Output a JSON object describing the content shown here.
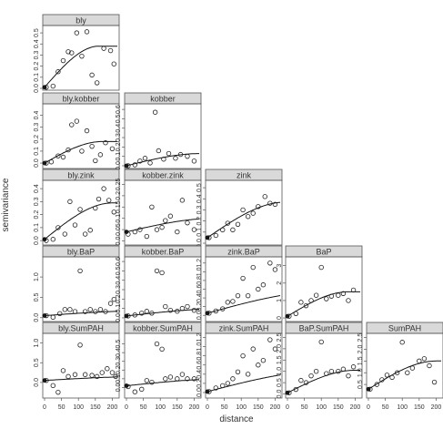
{
  "chart_data": {
    "type": "scatter",
    "layout": "lower-triangular panel grid (5 x 5) with fitted curve per panel",
    "xlabel": "distance",
    "ylabel": "semivariance",
    "xlim": [
      0,
      215
    ],
    "x_ticks": [
      "0",
      "50",
      "100",
      "150",
      "200"
    ],
    "panels": [
      {
        "title": "bly",
        "row": 0,
        "col": 0,
        "ylim": [
          0,
          0.55
        ],
        "y_ticks": [
          [
            "0.0",
            0
          ],
          [
            "0.1",
            0.1
          ],
          [
            "0.2",
            0.2
          ],
          [
            "0.3",
            0.3
          ],
          [
            "0.4",
            0.4
          ],
          [
            "0.5",
            0.5
          ]
        ],
        "x": [
          5,
          25,
          40,
          55,
          70,
          80,
          95,
          110,
          125,
          140,
          155,
          175,
          195,
          205
        ],
        "y": [
          0.01,
          0.02,
          0.15,
          0.25,
          0.33,
          0.32,
          0.5,
          0.29,
          0.51,
          0.12,
          0.05,
          0.36,
          0.34,
          0.22
        ],
        "fit": {
          "a": 0.01,
          "b": 0.37,
          "r": 160
        }
      },
      {
        "title": "bly.kobber",
        "row": 1,
        "col": 0,
        "ylim": [
          -0.03,
          0.48
        ],
        "y_ticks": [
          [
            "0.0",
            0
          ],
          [
            "0.1",
            0.1
          ],
          [
            "0.2",
            0.2
          ],
          [
            "0.3",
            0.3
          ],
          [
            "0.4",
            0.4
          ]
        ],
        "x": [
          5,
          20,
          40,
          55,
          70,
          80,
          95,
          110,
          125,
          140,
          150,
          165,
          180,
          200
        ],
        "y": [
          0.0,
          0.01,
          0.06,
          0.05,
          0.11,
          0.32,
          0.35,
          0.1,
          0.27,
          0.14,
          0.02,
          0.07,
          0.17,
          0.12
        ],
        "fit": {
          "a": 0.0,
          "b": 0.18,
          "r": 170
        }
      },
      {
        "title": "kobber",
        "row": 1,
        "col": 1,
        "ylim": [
          -0.01,
          0.64
        ],
        "y_ticks": [
          [
            "0.0",
            0
          ],
          [
            "0.1",
            0.1
          ],
          [
            "0.2",
            0.2
          ],
          [
            "0.3",
            0.3
          ],
          [
            "0.4",
            0.4
          ],
          [
            "0.5",
            0.5
          ],
          [
            "0.6",
            0.6
          ]
        ],
        "x": [
          5,
          25,
          40,
          55,
          70,
          85,
          95,
          110,
          125,
          145,
          160,
          180,
          200
        ],
        "y": [
          0.0,
          0.01,
          0.05,
          0.08,
          0.03,
          0.57,
          0.16,
          0.07,
          0.13,
          0.08,
          0.12,
          0.1,
          0.05
        ],
        "fit": {
          "a": 0.0,
          "b": 0.13,
          "r": 220
        }
      },
      {
        "title": "bly.zink",
        "row": 2,
        "col": 0,
        "ylim": [
          -0.02,
          0.45
        ],
        "y_ticks": [
          [
            "0.0",
            0
          ],
          [
            "0.1",
            0.1
          ],
          [
            "0.2",
            0.2
          ],
          [
            "0.3",
            0.3
          ],
          [
            "0.4",
            0.4
          ]
        ],
        "x": [
          5,
          25,
          40,
          60,
          75,
          90,
          105,
          120,
          135,
          150,
          160,
          175,
          190,
          205
        ],
        "y": [
          0.0,
          0.01,
          0.1,
          0.05,
          0.3,
          0.12,
          0.24,
          0.05,
          0.08,
          0.25,
          0.32,
          0.4,
          0.31,
          0.22
        ],
        "fit": {
          "a": 0.01,
          "b": 0.28,
          "r": 200
        }
      },
      {
        "title": "kobber.zink",
        "row": 2,
        "col": 1,
        "ylim": [
          -0.01,
          0.26
        ],
        "y_ticks": [
          [
            "0.0",
            0
          ],
          [
            "0.05",
            0.05
          ],
          [
            "0.1",
            0.1
          ],
          [
            "0.15",
            0.15
          ],
          [
            "0.2",
            0.2
          ],
          [
            "0.25",
            0.25
          ]
        ],
        "x": [
          5,
          25,
          40,
          60,
          75,
          90,
          105,
          115,
          130,
          150,
          165,
          180,
          200
        ],
        "y": [
          0.03,
          0.04,
          0.05,
          0.02,
          0.15,
          0.05,
          0.06,
          0.09,
          0.11,
          0.04,
          0.18,
          0.08,
          0.05
        ],
        "fit": {
          "a": 0.04,
          "b": 0.06,
          "r": 260
        }
      },
      {
        "title": "zink",
        "row": 2,
        "col": 2,
        "ylim": [
          0,
          0.55
        ],
        "y_ticks": [
          [
            "0.0",
            0
          ],
          [
            "0.1",
            0.1
          ],
          [
            "0.2",
            0.2
          ],
          [
            "0.3",
            0.3
          ],
          [
            "0.4",
            0.4
          ],
          [
            "0.5",
            0.5
          ]
        ],
        "x": [
          5,
          25,
          45,
          60,
          75,
          90,
          105,
          120,
          135,
          150,
          170,
          185,
          200
        ],
        "y": [
          0.05,
          0.07,
          0.12,
          0.18,
          0.12,
          0.17,
          0.3,
          0.24,
          0.27,
          0.33,
          0.42,
          0.36,
          0.35
        ],
        "fit": {
          "a": 0.05,
          "b": 0.32,
          "r": 230
        }
      },
      {
        "title": "bly.BaP",
        "row": 3,
        "col": 0,
        "ylim": [
          -0.05,
          1.45
        ],
        "y_ticks": [
          [
            "0.0",
            0
          ],
          [
            "0.5",
            0.5
          ],
          [
            "1.0",
            1.0
          ]
        ],
        "x": [
          5,
          25,
          45,
          60,
          75,
          90,
          105,
          120,
          135,
          150,
          165,
          180,
          195,
          205
        ],
        "y": [
          0.05,
          0.01,
          0.1,
          0.2,
          0.2,
          0.15,
          1.15,
          0.15,
          0.2,
          0.15,
          0.2,
          0.15,
          0.35,
          0.45
        ],
        "fit": {
          "a": 0.05,
          "b": 0.12,
          "r": 300
        }
      },
      {
        "title": "kobber.BaP",
        "row": 3,
        "col": 1,
        "ylim": [
          -0.02,
          0.63
        ],
        "y_ticks": [
          [
            "0.0",
            0
          ],
          [
            "0.1",
            0.1
          ],
          [
            "0.2",
            0.2
          ],
          [
            "0.3",
            0.3
          ],
          [
            "0.4",
            0.4
          ],
          [
            "0.5",
            0.5
          ],
          [
            "0.6",
            0.6
          ]
        ],
        "x": [
          5,
          25,
          45,
          60,
          75,
          90,
          105,
          115,
          130,
          150,
          165,
          180,
          200
        ],
        "y": [
          0.02,
          0.03,
          0.05,
          0.07,
          0.05,
          0.5,
          0.48,
          0.12,
          0.08,
          0.07,
          0.1,
          0.12,
          0.08
        ],
        "fit": {
          "a": 0.02,
          "b": 0.08,
          "r": 300
        }
      },
      {
        "title": "zink.BaP",
        "row": 3,
        "col": 2,
        "ylim": [
          -0.1,
          1.3
        ],
        "y_ticks": [
          [
            "0.0",
            0
          ],
          [
            "0.2",
            0.2
          ],
          [
            "0.4",
            0.4
          ],
          [
            "0.6",
            0.6
          ],
          [
            "0.8",
            0.8
          ],
          [
            "1.0",
            1.0
          ],
          [
            "1.2",
            1.2
          ]
        ],
        "x": [
          5,
          25,
          45,
          60,
          75,
          90,
          105,
          120,
          135,
          150,
          165,
          185,
          200
        ],
        "y": [
          0.05,
          0.1,
          0.15,
          0.3,
          0.32,
          0.45,
          0.85,
          0.45,
          1.1,
          0.6,
          0.7,
          1.2,
          1.05
        ],
        "fit": {
          "a": 0.05,
          "b": 0.5,
          "r": 350
        }
      },
      {
        "title": "BaP",
        "row": 3,
        "col": 3,
        "ylim": [
          -0.1,
          3.4
        ],
        "y_ticks": [
          [
            "0",
            0
          ],
          [
            "1",
            1
          ],
          [
            "2",
            2
          ],
          [
            "3",
            3
          ]
        ],
        "x": [
          5,
          25,
          40,
          55,
          70,
          85,
          100,
          115,
          130,
          150,
          165,
          180,
          195
        ],
        "y": [
          0.1,
          0.25,
          0.9,
          0.7,
          1.0,
          1.3,
          2.9,
          1.1,
          1.25,
          1.3,
          1.4,
          1.0,
          1.6
        ],
        "fit": {
          "a": 0.1,
          "b": 1.4,
          "r": 180
        }
      },
      {
        "title": "bly.SumPAH",
        "row": 4,
        "col": 0,
        "ylim": [
          -0.35,
          1.2
        ],
        "y_ticks": [
          [
            "0.0",
            0
          ],
          [
            "0.5",
            0.5
          ],
          [
            "1.0",
            1.0
          ]
        ],
        "x": [
          5,
          25,
          40,
          55,
          70,
          90,
          105,
          120,
          140,
          155,
          170,
          185,
          200,
          210
        ],
        "y": [
          0.05,
          -0.08,
          -0.25,
          0.3,
          0.15,
          0.2,
          0.95,
          0.2,
          0.18,
          0.15,
          0.25,
          0.35,
          0.25,
          0.15
        ],
        "fit": {
          "a": 0.05,
          "b": 0.1,
          "r": 300
        }
      },
      {
        "title": "kobber.SumPAH",
        "row": 4,
        "col": 1,
        "ylim": [
          -0.1,
          0.6
        ],
        "y_ticks": [
          [
            "0.0",
            0
          ],
          [
            "0.1",
            0.1
          ],
          [
            "0.2",
            0.2
          ],
          [
            "0.3",
            0.3
          ],
          [
            "0.4",
            0.4
          ],
          [
            "0.5",
            0.5
          ]
        ],
        "x": [
          5,
          25,
          45,
          60,
          75,
          90,
          105,
          115,
          130,
          150,
          165,
          180,
          200
        ],
        "y": [
          0.01,
          -0.05,
          -0.02,
          0.08,
          0.06,
          0.5,
          0.44,
          0.1,
          0.12,
          0.1,
          0.15,
          0.1,
          0.1
        ],
        "fit": {
          "a": 0.02,
          "b": 0.08,
          "r": 300
        }
      },
      {
        "title": "zink.SumPAH",
        "row": 4,
        "col": 2,
        "ylim": [
          -0.08,
          1.25
        ],
        "y_ticks": [
          [
            "0.0",
            0
          ],
          [
            "0.2",
            0.2
          ],
          [
            "0.4",
            0.4
          ],
          [
            "0.6",
            0.6
          ],
          [
            "0.8",
            0.8
          ],
          [
            "1.0",
            1.0
          ],
          [
            "1.2",
            1.2
          ]
        ],
        "x": [
          5,
          25,
          45,
          60,
          75,
          90,
          105,
          120,
          135,
          150,
          165,
          185,
          200
        ],
        "y": [
          0.02,
          0.1,
          0.15,
          0.2,
          0.3,
          0.45,
          0.8,
          0.4,
          0.95,
          0.6,
          0.7,
          1.15,
          0.95
        ],
        "fit": {
          "a": 0.02,
          "b": 0.45,
          "r": 350
        }
      },
      {
        "title": "BaP.SumPAH",
        "row": 4,
        "col": 3,
        "ylim": [
          -0.1,
          2.6
        ],
        "y_ticks": [
          [
            "0.0",
            0
          ],
          [
            "0.5",
            0.5
          ],
          [
            "1.0",
            1.0
          ],
          [
            "1.5",
            1.5
          ],
          [
            "2.0",
            2.0
          ],
          [
            "2.5",
            2.5
          ]
        ],
        "x": [
          5,
          25,
          40,
          55,
          70,
          85,
          100,
          115,
          130,
          150,
          165,
          180,
          195
        ],
        "y": [
          0.05,
          0.2,
          0.6,
          0.5,
          0.8,
          1.0,
          2.3,
          0.9,
          1.0,
          1.0,
          1.1,
          0.8,
          1.2
        ],
        "fit": {
          "a": 0.05,
          "b": 1.0,
          "r": 200
        }
      },
      {
        "title": "SumPAH",
        "row": 4,
        "col": 4,
        "ylim": [
          0,
          2.6
        ],
        "y_ticks": [
          [
            "0.5",
            0.5
          ],
          [
            "1.0",
            1.0
          ],
          [
            "1.5",
            1.5
          ],
          [
            "2.0",
            2.0
          ],
          [
            "2.5",
            2.5
          ]
        ],
        "x": [
          5,
          25,
          40,
          55,
          70,
          85,
          100,
          115,
          130,
          150,
          165,
          180,
          195
        ],
        "y": [
          0.3,
          0.5,
          0.7,
          0.9,
          0.8,
          1.0,
          2.3,
          1.0,
          1.2,
          1.5,
          1.6,
          1.3,
          0.6
        ],
        "fit": {
          "a": 0.3,
          "b": 1.2,
          "r": 200
        }
      }
    ]
  }
}
